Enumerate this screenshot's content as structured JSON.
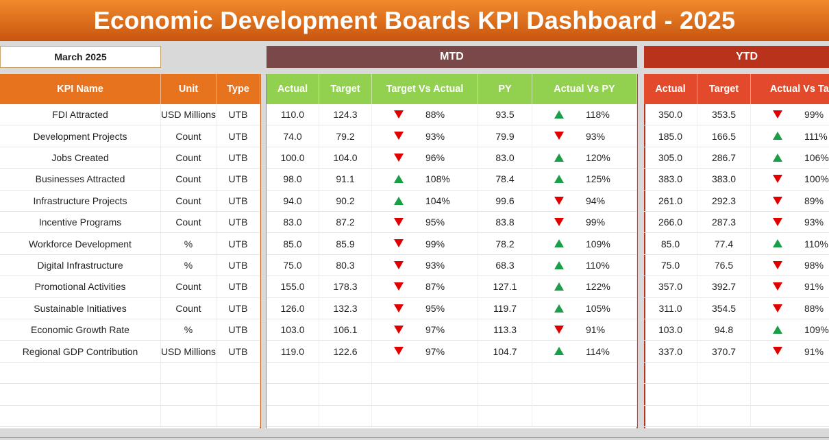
{
  "header": {
    "title": "Economic Development Boards KPI Dashboard - 2025",
    "month": "March 2025",
    "mtd": "MTD",
    "ytd": "YTD"
  },
  "table": {
    "columns": [
      "KPI Name",
      "Unit",
      "Type",
      "Actual",
      "Target",
      "Target Vs Actual",
      "PY",
      "Actual Vs PY",
      "Actual",
      "Target",
      "Actual Vs Target"
    ],
    "rows": [
      [
        "FDI Attracted",
        "USD Millions",
        "UTB",
        "110.0",
        "124.3",
        "88%",
        "93.5",
        "118%",
        "350.0",
        "353.5",
        "99%"
      ],
      [
        "Development Projects",
        "Count",
        "UTB",
        "74.0",
        "79.2",
        "93%",
        "79.9",
        "93%",
        "185.0",
        "166.5",
        "111%"
      ],
      [
        "Jobs Created",
        "Count",
        "UTB",
        "100.0",
        "104.0",
        "96%",
        "83.0",
        "120%",
        "305.0",
        "286.7",
        "106%"
      ],
      [
        "Businesses Attracted",
        "Count",
        "UTB",
        "98.0",
        "91.1",
        "108%",
        "78.4",
        "125%",
        "383.0",
        "383.0",
        "100%"
      ],
      [
        "Infrastructure Projects",
        "Count",
        "UTB",
        "94.0",
        "90.2",
        "104%",
        "99.6",
        "94%",
        "261.0",
        "292.3",
        "89%"
      ],
      [
        "Incentive Programs",
        "Count",
        "UTB",
        "83.0",
        "87.2",
        "95%",
        "83.8",
        "99%",
        "266.0",
        "287.3",
        "93%"
      ],
      [
        "Workforce Development",
        "%",
        "UTB",
        "85.0",
        "85.9",
        "99%",
        "78.2",
        "109%",
        "85.0",
        "77.4",
        "110%"
      ],
      [
        "Digital Infrastructure",
        "%",
        "UTB",
        "75.0",
        "80.3",
        "93%",
        "68.3",
        "110%",
        "75.0",
        "76.5",
        "98%"
      ],
      [
        "Promotional Activities",
        "Count",
        "UTB",
        "155.0",
        "178.3",
        "87%",
        "127.1",
        "122%",
        "357.0",
        "392.7",
        "91%"
      ],
      [
        "Sustainable Initiatives",
        "Count",
        "UTB",
        "126.0",
        "132.3",
        "95%",
        "119.7",
        "105%",
        "311.0",
        "354.5",
        "88%"
      ],
      [
        "Economic Growth Rate",
        "%",
        "UTB",
        "103.0",
        "106.1",
        "97%",
        "113.3",
        "91%",
        "103.0",
        "94.8",
        "109%"
      ],
      [
        "Regional GDP Contribution",
        "USD Millions",
        "UTB",
        "119.0",
        "122.6",
        "97%",
        "104.7",
        "114%",
        "337.0",
        "370.7",
        "91%"
      ]
    ]
  }
}
